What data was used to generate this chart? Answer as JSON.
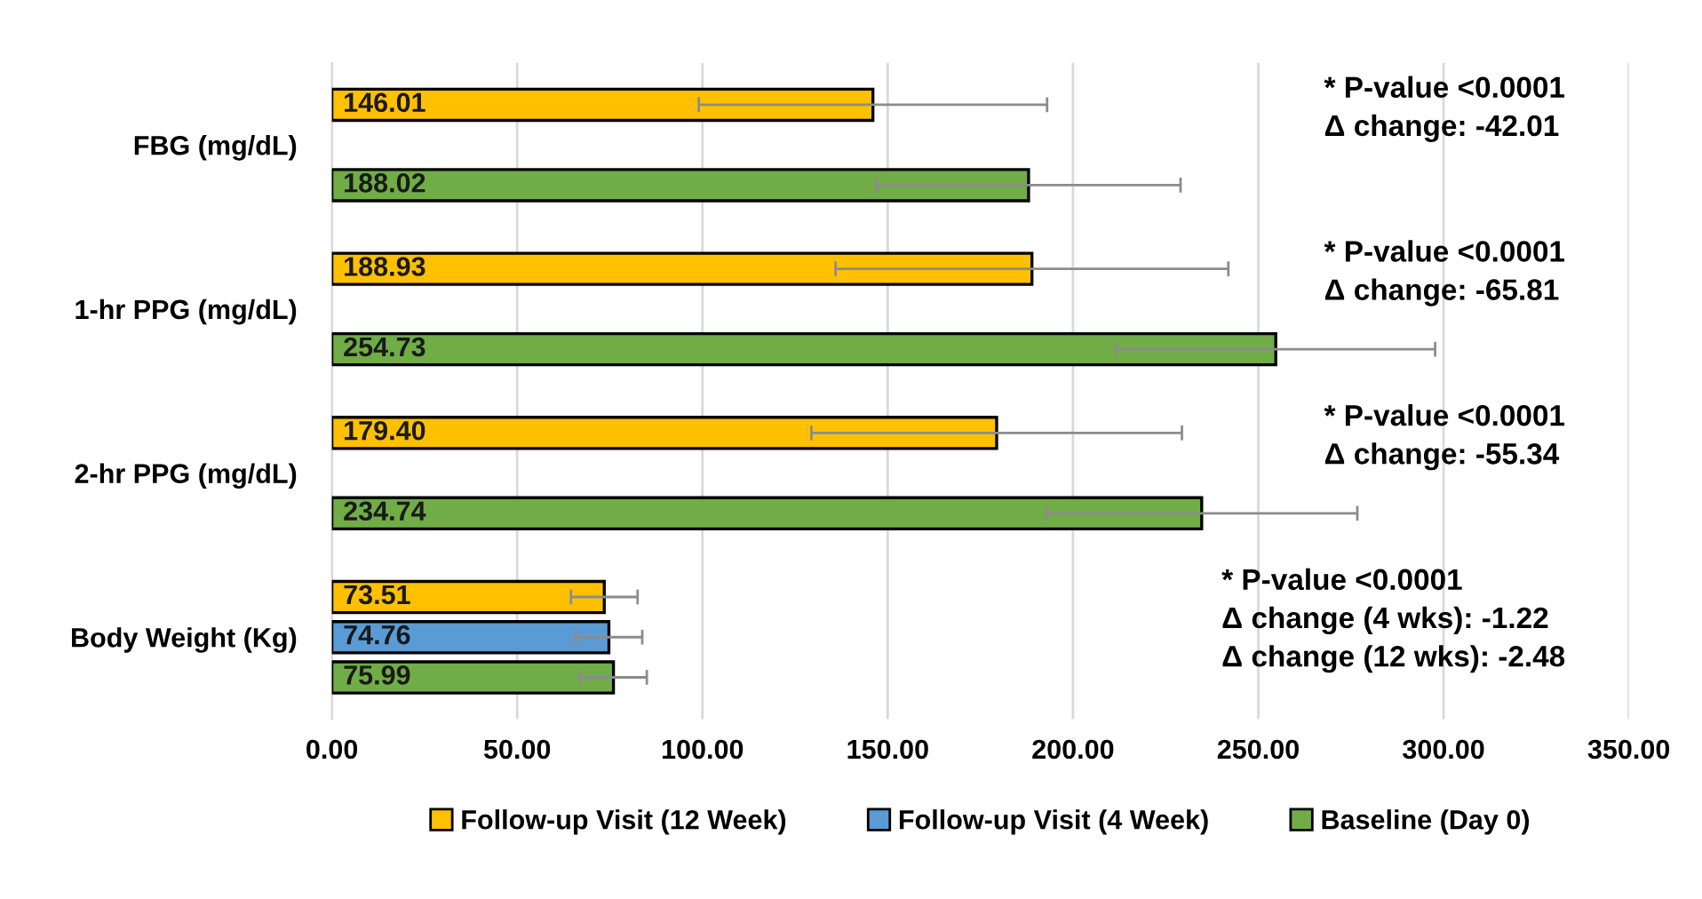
{
  "chart_data": {
    "type": "bar",
    "orientation": "horizontal",
    "categories": [
      "FBG (mg/dL)",
      "1-hr PPG (mg/dL)",
      "2-hr PPG (mg/dL)",
      "Body Weight (Kg)"
    ],
    "series": [
      {
        "name": "Follow-up Visit (12 Week)",
        "color": "#ffc000",
        "values": [
          146.01,
          188.93,
          179.4,
          73.51
        ],
        "errors": [
          47,
          53,
          50,
          9
        ],
        "value_labels": [
          "146.01",
          "188.93",
          "179.40",
          "73.51"
        ]
      },
      {
        "name": "Follow-up Visit (4 Week)",
        "color": "#5b9bd5",
        "values": [
          null,
          null,
          null,
          74.76
        ],
        "errors": [
          null,
          null,
          null,
          9
        ],
        "value_labels": [
          null,
          null,
          null,
          "74.76"
        ]
      },
      {
        "name": "Baseline (Day 0)",
        "color": "#70ad47",
        "values": [
          188.02,
          254.73,
          234.74,
          75.99
        ],
        "errors": [
          41,
          43,
          42,
          9
        ],
        "value_labels": [
          "188.02",
          "254.73",
          "234.74",
          "75.99"
        ]
      }
    ],
    "xlim": [
      0,
      350
    ],
    "xticks": [
      {
        "value": 0,
        "label": "0.00"
      },
      {
        "value": 50,
        "label": "50.00"
      },
      {
        "value": 100,
        "label": "100.00"
      },
      {
        "value": 150,
        "label": "150.00"
      },
      {
        "value": 200,
        "label": "200.00"
      },
      {
        "value": 250,
        "label": "250.00"
      },
      {
        "value": 300,
        "label": "300.00"
      },
      {
        "value": 350,
        "label": "350.00"
      }
    ],
    "annotations": [
      "* P-value <0.0001\nΔ change: -42.01",
      "* P-value <0.0001\nΔ change: -65.81",
      "* P-value <0.0001\nΔ change: -55.34",
      "* P-value <0.0001\nΔ change (4 wks): -1.22\nΔ change (12 wks): -2.48"
    ],
    "grid": "x",
    "legend": "bottom"
  }
}
